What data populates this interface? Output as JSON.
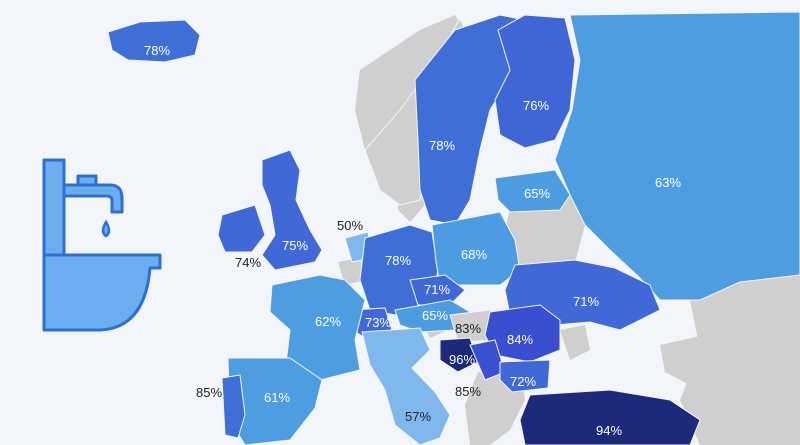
{
  "colors": {
    "background": "#f2f5fa",
    "no_data": "#cfcfcf",
    "scale_dark": "#1d2a7a",
    "scale_mid": "#4069d6",
    "scale_light": "#4d9be0",
    "scale_pale": "#7fb8ec",
    "icon_fill": "#6aaef0",
    "icon_stroke": "#2f6fd0"
  },
  "icon": {
    "name": "faucet-sink-icon"
  },
  "regions": [
    {
      "id": "iceland",
      "label": "78%",
      "value": 78,
      "color": "#3f6fd6"
    },
    {
      "id": "norway",
      "label": "",
      "value": null,
      "color": "#cfcfcf"
    },
    {
      "id": "sweden",
      "label": "78%",
      "value": 78,
      "color": "#3f6fd6"
    },
    {
      "id": "finland",
      "label": "76%",
      "value": 76,
      "color": "#4066d6"
    },
    {
      "id": "russia",
      "label": "63%",
      "value": 63,
      "color": "#4e9de0"
    },
    {
      "id": "baltics",
      "label": "65%",
      "value": 65,
      "color": "#4d9be0"
    },
    {
      "id": "ireland",
      "label": "74%",
      "value": 74,
      "color": "#4068d6"
    },
    {
      "id": "uk",
      "label": "75%",
      "value": 75,
      "color": "#4068d6"
    },
    {
      "id": "netherlands",
      "label": "50%",
      "value": 50,
      "color": "#7fb8ec"
    },
    {
      "id": "germany",
      "label": "78%",
      "value": 78,
      "color": "#3f6fd6"
    },
    {
      "id": "poland",
      "label": "68%",
      "value": 68,
      "color": "#4d9be0"
    },
    {
      "id": "czechia",
      "label": "71%",
      "value": 71,
      "color": "#4068d6"
    },
    {
      "id": "austria",
      "label": "65%",
      "value": 65,
      "color": "#4d9be0"
    },
    {
      "id": "switzerland",
      "label": "73%",
      "value": 73,
      "color": "#4068d6"
    },
    {
      "id": "france",
      "label": "62%",
      "value": 62,
      "color": "#4e9de0"
    },
    {
      "id": "ukraine",
      "label": "71%",
      "value": 71,
      "color": "#4068d6"
    },
    {
      "id": "hungary",
      "label": "83%",
      "value": 83,
      "color": "#cfcfcf"
    },
    {
      "id": "romania",
      "label": "84%",
      "value": 84,
      "color": "#3a4fd0"
    },
    {
      "id": "bosnia",
      "label": "96%",
      "value": 96,
      "color": "#1d2a7a"
    },
    {
      "id": "serbia",
      "label": "85%",
      "value": 85,
      "color": "#3a50cf"
    },
    {
      "id": "bulgaria",
      "label": "72%",
      "value": 72,
      "color": "#4068d6"
    },
    {
      "id": "italy",
      "label": "57%",
      "value": 57,
      "color": "#7fb8ec"
    },
    {
      "id": "spain",
      "label": "61%",
      "value": 61,
      "color": "#4e9de0"
    },
    {
      "id": "portugal",
      "label": "85%",
      "value": 85,
      "color": "#3f6fd6"
    },
    {
      "id": "turkey",
      "label": "94%",
      "value": 94,
      "color": "#1d2a7a"
    }
  ]
}
